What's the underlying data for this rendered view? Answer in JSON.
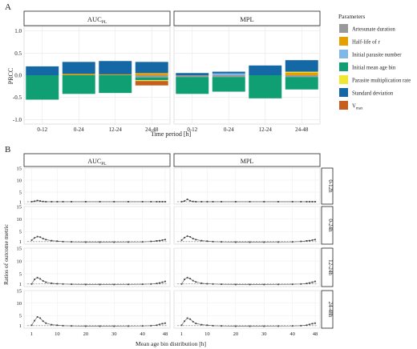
{
  "panel_a": {
    "label": "A",
    "ylabel": "PRCC",
    "xlabel": "Time period [h]",
    "facets": [
      {
        "title_main": "AUC",
        "title_sub": "PL"
      },
      {
        "title_main": "MPL",
        "title_sub": ""
      }
    ]
  },
  "legend": {
    "title": "Parameters",
    "items": [
      {
        "label": "Artesunate duration",
        "sub": "",
        "color": "#999999"
      },
      {
        "label": "Half-life of r",
        "sub": "",
        "color": "#E69F00"
      },
      {
        "label": "Initial parasite number",
        "sub": "",
        "color": "#7FB7E6"
      },
      {
        "label": "Initial mean age bin",
        "sub": "",
        "color": "#109E73"
      },
      {
        "label": "Parasite multiplication rate",
        "sub": "",
        "color": "#EEE832"
      },
      {
        "label": "Standard deviation",
        "sub": "",
        "color": "#1468A6"
      },
      {
        "label": "V",
        "sub": "max",
        "color": "#C65E1E"
      }
    ]
  },
  "panel_b": {
    "label": "B",
    "ylabel": "Ratios of outcome metric",
    "xlabel": "Mean age bin distribution [h]",
    "col_facets": [
      {
        "title_main": "AUC",
        "title_sub": "PL"
      },
      {
        "title_main": "MPL",
        "title_sub": ""
      }
    ],
    "row_facets": [
      "0-12h",
      "0-24h",
      "12-24h",
      "24-48h"
    ]
  },
  "chart_data": [
    {
      "type": "bar",
      "stacked": true,
      "title": "",
      "xlabel": "Time period [h]",
      "ylabel": "PRCC",
      "ylim": [
        -1.1,
        1.1
      ],
      "yticks": [
        "1.0",
        "0.5",
        "0.0",
        "-0.5",
        "-1.0"
      ],
      "ytick_values": [
        1.0,
        0.5,
        0.0,
        -0.5,
        -1.0
      ],
      "categories": [
        "0-12",
        "0-24",
        "12-24",
        "24-48"
      ],
      "facets": [
        "AUC_PL",
        "MPL"
      ],
      "grid": true,
      "legend_position": "right",
      "series": [
        {
          "name": "Artesunate duration",
          "values": [
            [
              0.0,
              0.0,
              0.0,
              -0.05
            ],
            [
              -0.04,
              -0.04,
              0.0,
              -0.04
            ]
          ]
        },
        {
          "name": "Half-life of r",
          "values": [
            [
              0.0,
              0.03,
              0.02,
              0.05
            ],
            [
              0.0,
              0.0,
              0.0,
              0.06
            ]
          ]
        },
        {
          "name": "Initial parasite number",
          "values": [
            [
              0.0,
              0.0,
              0.0,
              0.0
            ],
            [
              0.0,
              0.04,
              0.0,
              0.0
            ]
          ]
        },
        {
          "name": "Initial mean age bin",
          "values": [
            [
              -0.55,
              -0.42,
              -0.4,
              -0.06
            ],
            [
              -0.38,
              -0.33,
              -0.52,
              -0.28
            ]
          ]
        },
        {
          "name": "Parasite multiplication rate",
          "values": [
            [
              0.0,
              0.0,
              0.0,
              -0.02
            ],
            [
              0.0,
              0.0,
              0.0,
              0.02
            ]
          ]
        },
        {
          "name": "Standard deviation",
          "values": [
            [
              0.2,
              0.27,
              0.3,
              0.25
            ],
            [
              0.05,
              0.04,
              0.22,
              0.26
            ]
          ]
        },
        {
          "name": "V_max",
          "values": [
            [
              0.0,
              0.0,
              0.0,
              -0.1
            ],
            [
              0.0,
              0.0,
              0.0,
              0.0
            ]
          ]
        }
      ]
    },
    {
      "type": "line",
      "title": "",
      "xlabel": "Mean age bin distribution [h]",
      "ylabel": "Ratios of outcome metric",
      "xlim": [
        0,
        48
      ],
      "xticks": [
        "1",
        "10",
        "20",
        "30",
        "40",
        "48"
      ],
      "xtick_values": [
        1,
        10,
        20,
        30,
        40,
        48
      ],
      "ylim": [
        0,
        15
      ],
      "yticks": [
        "15",
        "10",
        "5",
        "1"
      ],
      "ytick_values": [
        15,
        10,
        5,
        1
      ],
      "reference_line": 1,
      "col_facets": [
        "AUC_PL",
        "MPL"
      ],
      "row_facets": [
        "0-12h",
        "0-24h",
        "12-24h",
        "24-48h"
      ],
      "x": [
        1,
        2,
        3,
        4,
        5,
        6,
        8,
        10,
        12,
        15,
        20,
        25,
        30,
        35,
        40,
        43,
        45,
        46,
        47,
        48
      ],
      "series": [
        {
          "row": "0-12h",
          "col": "AUC_PL",
          "values": [
            1.0,
            1.2,
            1.5,
            1.3,
            1.1,
            1.0,
            1.0,
            1.0,
            1.0,
            1.0,
            1.0,
            1.0,
            1.0,
            1.0,
            1.0,
            1.0,
            1.0,
            1.0,
            1.0,
            1.0
          ]
        },
        {
          "row": "0-12h",
          "col": "MPL",
          "values": [
            1.0,
            1.3,
            2.0,
            1.4,
            1.1,
            1.0,
            1.0,
            1.0,
            1.0,
            1.0,
            1.0,
            1.0,
            1.0,
            1.0,
            1.0,
            1.0,
            1.0,
            1.0,
            1.0,
            1.0
          ]
        },
        {
          "row": "0-24h",
          "col": "AUC_PL",
          "values": [
            1.6,
            2.5,
            3.0,
            2.8,
            2.2,
            1.8,
            1.4,
            1.2,
            1.0,
            0.9,
            0.8,
            0.8,
            0.8,
            0.85,
            0.9,
            1.1,
            1.3,
            1.4,
            1.6,
            1.8
          ]
        },
        {
          "row": "0-24h",
          "col": "MPL",
          "values": [
            1.6,
            2.6,
            3.2,
            2.9,
            2.2,
            1.8,
            1.4,
            1.2,
            1.0,
            0.9,
            0.8,
            0.8,
            0.8,
            0.85,
            0.9,
            1.1,
            1.3,
            1.4,
            1.6,
            1.8
          ]
        },
        {
          "row": "12-24h",
          "col": "AUC_PL",
          "values": [
            1.0,
            2.8,
            3.5,
            3.0,
            2.2,
            1.7,
            1.3,
            1.1,
            1.0,
            0.9,
            0.8,
            0.8,
            0.8,
            0.85,
            0.9,
            1.0,
            1.2,
            1.4,
            1.7,
            2.0
          ]
        },
        {
          "row": "12-24h",
          "col": "MPL",
          "values": [
            1.0,
            2.8,
            3.5,
            3.1,
            2.3,
            1.8,
            1.3,
            1.1,
            1.0,
            0.9,
            0.8,
            0.8,
            0.8,
            0.85,
            0.9,
            1.0,
            1.2,
            1.4,
            1.7,
            2.0
          ]
        },
        {
          "row": "24-48h",
          "col": "AUC_PL",
          "values": [
            1.2,
            3.0,
            4.5,
            4.0,
            2.8,
            2.0,
            1.4,
            1.2,
            1.0,
            0.9,
            0.8,
            0.8,
            0.8,
            0.85,
            0.9,
            1.0,
            1.2,
            1.5,
            1.8,
            2.0
          ]
        },
        {
          "row": "24-48h",
          "col": "MPL",
          "values": [
            1.2,
            2.8,
            4.0,
            3.6,
            2.6,
            1.9,
            1.4,
            1.2,
            1.0,
            0.9,
            0.8,
            0.8,
            0.8,
            0.85,
            0.9,
            1.0,
            1.2,
            1.5,
            1.8,
            2.0
          ]
        }
      ]
    }
  ]
}
